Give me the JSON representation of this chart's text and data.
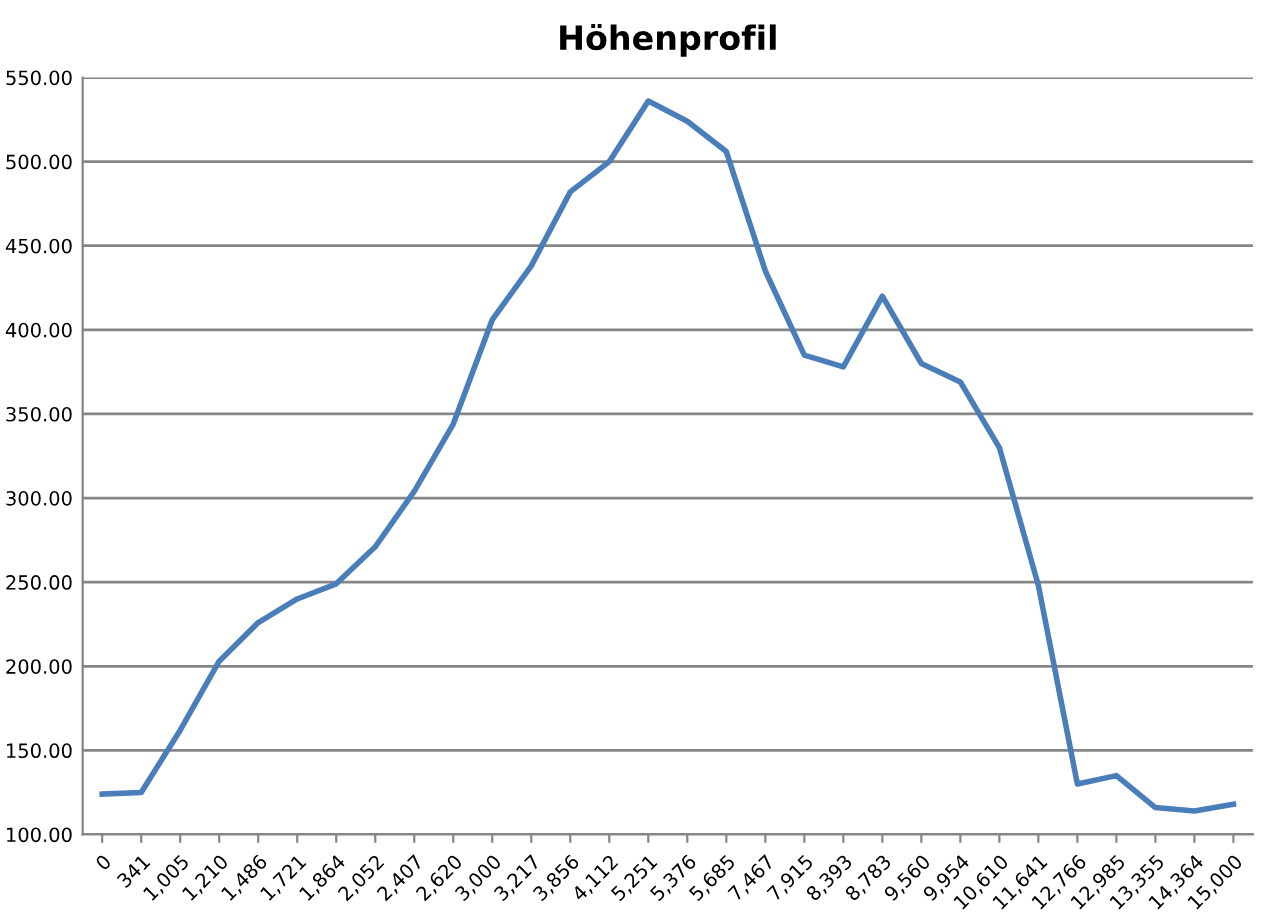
{
  "chart_data": {
    "type": "line",
    "title": "Höhenprofil",
    "categories": [
      "0",
      "341",
      "1,005",
      "1,210",
      "1,486",
      "1,721",
      "1,864",
      "2,052",
      "2,407",
      "2,620",
      "3,000",
      "3,217",
      "3,856",
      "4,112",
      "5,251",
      "5,376",
      "5,685",
      "7,467",
      "7,915",
      "8,393",
      "8,783",
      "9,560",
      "9,954",
      "10,610",
      "11,641",
      "12,766",
      "12,985",
      "13,355",
      "14,364",
      "15,000"
    ],
    "series": [
      {
        "color": "#4a7ebb",
        "values": [
          124,
          125,
          162,
          203,
          226,
          240,
          249,
          271,
          304,
          344,
          406,
          438,
          482,
          500,
          536,
          524,
          506,
          435,
          385,
          378,
          420,
          380,
          369,
          330,
          248,
          130,
          135,
          116,
          114,
          118
        ]
      }
    ],
    "ylim": [
      100,
      550
    ],
    "yticks": [
      {
        "value": 100,
        "label": "100.00"
      },
      {
        "value": 150,
        "label": "150.00"
      },
      {
        "value": 200,
        "label": "200.00"
      },
      {
        "value": 250,
        "label": "250.00"
      },
      {
        "value": 300,
        "label": "300.00"
      },
      {
        "value": 350,
        "label": "350.00"
      },
      {
        "value": 400,
        "label": "400.00"
      },
      {
        "value": 450,
        "label": "450.00"
      },
      {
        "value": 500,
        "label": "500.00"
      },
      {
        "value": 550,
        "label": "550.00"
      }
    ],
    "grid": "y",
    "legend": false,
    "marker": "none",
    "line_style": "solid"
  }
}
